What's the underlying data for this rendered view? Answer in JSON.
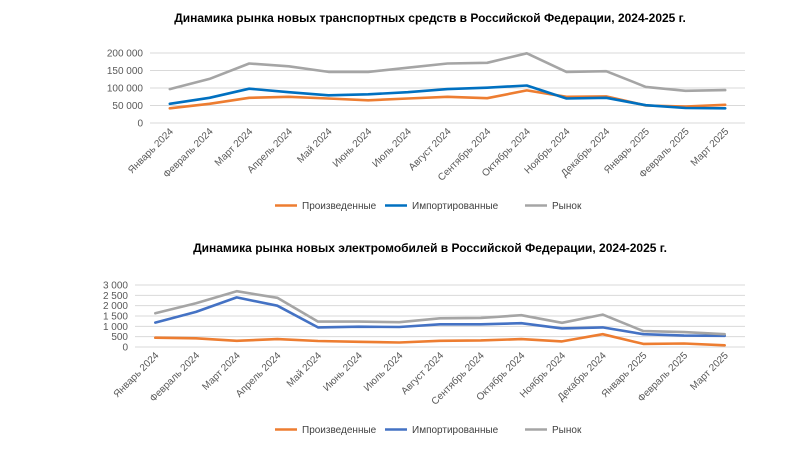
{
  "chart_data": [
    {
      "type": "line",
      "title": "Динамика рынка новых транспортных средств в Российской Федерации, 2024-2025 г.",
      "categories": [
        "Январь 2024",
        "Февраль 2024",
        "Март 2024",
        "Апрель 2024",
        "Май 2024",
        "Июнь 2024",
        "Июль 2024",
        "Август 2024",
        "Сентябрь 2024",
        "Октябрь 2024",
        "Ноябрь 2024",
        "Декабрь 2024",
        "Январь 2025",
        "Февраль 2025",
        "Март 2025"
      ],
      "y_ticks": [
        "0",
        "50 000",
        "100 000",
        "150 000",
        "200 000"
      ],
      "ylim": [
        0,
        200000
      ],
      "grid": "horizontal",
      "legend_position": "bottom",
      "series": [
        {
          "name": "Произведенные",
          "color": "#ED7D31",
          "values": [
            42000,
            55000,
            72000,
            75000,
            70000,
            65000,
            70000,
            75000,
            71000,
            93000,
            75000,
            76000,
            50000,
            47000,
            52000
          ]
        },
        {
          "name": "Импортированные",
          "color": "#0070C0",
          "values": [
            55000,
            72000,
            98000,
            88000,
            79000,
            82000,
            88000,
            97000,
            101000,
            107000,
            70000,
            72000,
            51000,
            43000,
            42000
          ]
        },
        {
          "name": "Рынок",
          "color": "#A5A5A5",
          "values": [
            97000,
            126000,
            170000,
            162000,
            146000,
            146000,
            158000,
            170000,
            172000,
            199000,
            146000,
            148000,
            103000,
            92000,
            94000
          ]
        }
      ]
    },
    {
      "type": "line",
      "title": "Динамика рынка новых электромобилей в Российской Федерации, 2024-2025 г.",
      "categories": [
        "Январь 2024",
        "Февраль 2024",
        "Март 2024",
        "Апрель 2024",
        "Май 2024",
        "Июнь 2024",
        "Июль 2024",
        "Август 2024",
        "Сентябрь 2024",
        "Октябрь 2024",
        "Ноябрь 2024",
        "Декабрь 2024",
        "Январь 2025",
        "Февраль 2025",
        "Март 2025"
      ],
      "y_ticks": [
        "0",
        "500",
        "1 000",
        "1 500",
        "2 000",
        "2 500",
        "3 000"
      ],
      "ylim": [
        0,
        3000
      ],
      "grid": "horizontal",
      "legend_position": "bottom",
      "series": [
        {
          "name": "Произведенные",
          "color": "#ED7D31",
          "values": [
            450,
            420,
            300,
            380,
            290,
            250,
            220,
            300,
            320,
            380,
            270,
            620,
            150,
            170,
            80
          ]
        },
        {
          "name": "Импортированные",
          "color": "#4472C4",
          "values": [
            1180,
            1700,
            2400,
            2000,
            950,
            980,
            970,
            1100,
            1100,
            1150,
            900,
            950,
            620,
            550,
            540
          ]
        },
        {
          "name": "Рынок",
          "color": "#A5A5A5",
          "values": [
            1630,
            2120,
            2700,
            2380,
            1230,
            1230,
            1200,
            1390,
            1410,
            1540,
            1170,
            1570,
            770,
            720,
            620
          ]
        }
      ]
    }
  ]
}
